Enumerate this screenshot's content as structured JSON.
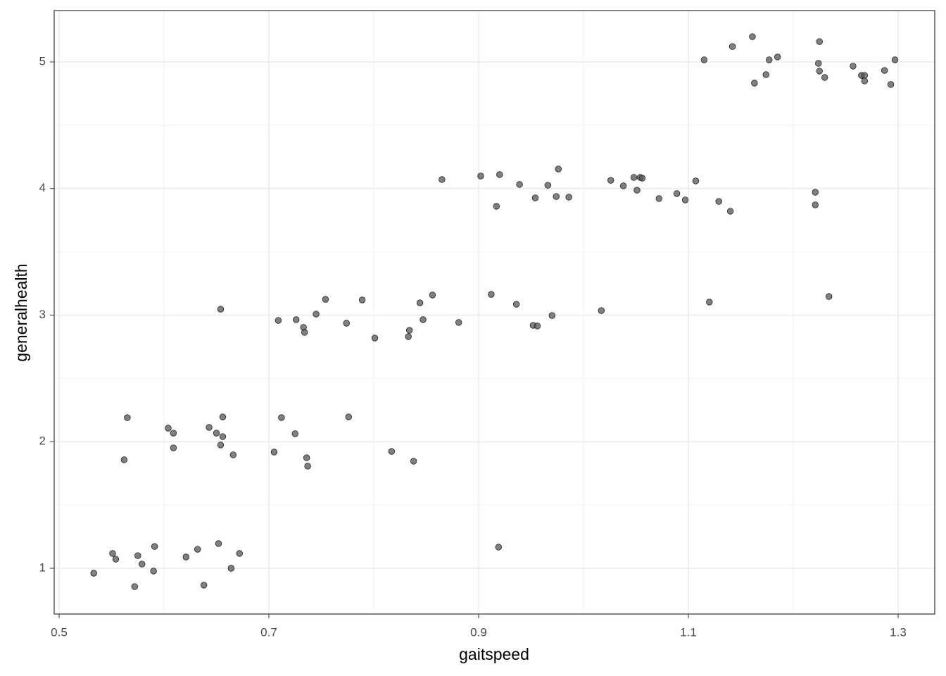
{
  "chart_data": {
    "type": "scatter",
    "xlabel": "gaitspeed",
    "ylabel": "generalhealth",
    "xlim": [
      0.4953,
      1.3349
    ],
    "ylim": [
      0.6384,
      5.406
    ],
    "xticks": [
      0.5,
      0.7,
      0.9,
      1.1,
      1.3
    ],
    "yticks": [
      1,
      2,
      3,
      4,
      5
    ],
    "grid": true,
    "color": "#555555",
    "series": [
      {
        "name": "points",
        "color": "#555555",
        "x": [
          0.533,
          0.551,
          0.554,
          0.572,
          0.575,
          0.579,
          0.59,
          0.591,
          0.621,
          0.632,
          0.638,
          0.652,
          0.664,
          0.672,
          0.919,
          0.565,
          0.562,
          0.604,
          0.609,
          0.609,
          0.643,
          0.65,
          0.656,
          0.656,
          0.654,
          0.666,
          0.705,
          0.712,
          0.725,
          0.736,
          0.737,
          0.776,
          0.817,
          0.838,
          0.654,
          0.709,
          0.726,
          0.733,
          0.734,
          0.745,
          0.754,
          0.774,
          0.789,
          0.801,
          0.833,
          0.834,
          0.844,
          0.847,
          0.856,
          0.881,
          0.912,
          0.936,
          0.952,
          0.956,
          0.97,
          1.017,
          1.12,
          1.234,
          0.865,
          0.902,
          0.917,
          0.92,
          0.939,
          0.954,
          0.966,
          0.974,
          0.976,
          0.986,
          1.026,
          1.038,
          1.048,
          1.051,
          1.054,
          1.056,
          1.072,
          1.089,
          1.097,
          1.107,
          1.129,
          1.14,
          1.221,
          1.221,
          1.115,
          1.142,
          1.161,
          1.163,
          1.174,
          1.177,
          1.185,
          1.225,
          1.224,
          1.225,
          1.23,
          1.257,
          1.265,
          1.268,
          1.268,
          1.287,
          1.293,
          1.297
        ],
        "values": [
          0.961,
          1.117,
          1.072,
          0.855,
          1.1,
          1.033,
          0.978,
          1.172,
          1.089,
          1.15,
          0.867,
          1.195,
          1.0,
          1.117,
          1.167,
          2.19,
          1.857,
          2.107,
          2.068,
          1.951,
          2.113,
          2.068,
          2.196,
          2.04,
          1.974,
          1.896,
          1.918,
          2.19,
          2.063,
          1.873,
          1.807,
          2.196,
          1.923,
          1.846,
          3.047,
          2.958,
          2.964,
          2.903,
          2.864,
          3.008,
          3.125,
          2.936,
          3.12,
          2.819,
          2.83,
          2.88,
          3.097,
          2.964,
          3.159,
          2.942,
          3.164,
          3.086,
          2.919,
          2.914,
          2.997,
          3.036,
          3.103,
          3.147,
          4.071,
          4.099,
          3.86,
          4.11,
          4.032,
          3.926,
          4.026,
          3.937,
          4.154,
          3.932,
          4.065,
          4.021,
          4.088,
          3.987,
          4.088,
          4.082,
          3.921,
          3.96,
          3.91,
          4.06,
          3.898,
          3.821,
          3.971,
          3.871,
          5.017,
          5.122,
          5.2,
          4.833,
          4.9,
          5.017,
          5.039,
          5.161,
          4.989,
          4.928,
          4.878,
          4.967,
          4.894,
          4.894,
          4.85,
          4.933,
          4.822,
          5.017
        ]
      }
    ]
  }
}
